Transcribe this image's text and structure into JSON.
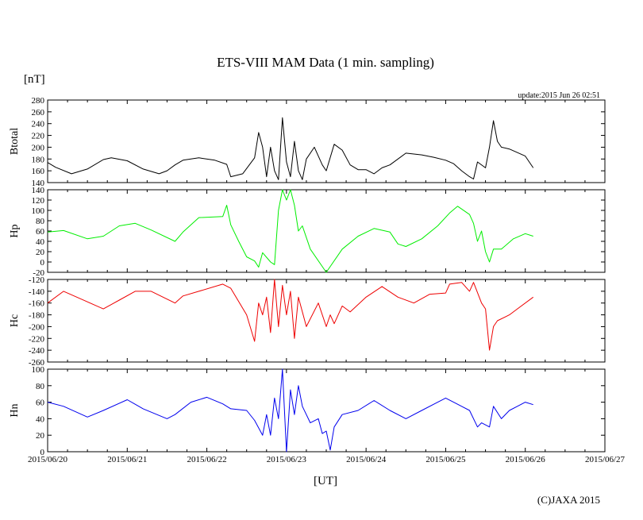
{
  "chart_data": {
    "type": "line",
    "title": "ETS-VIII MAM Data (1 min. sampling)",
    "unit_label": "[nT]",
    "xlabel": "[UT]",
    "update_text": "update:2015 Jun 26 02:51",
    "credit": "(C)JAXA 2015",
    "x_ticks": [
      "2015/06/20",
      "2015/06/21",
      "2015/06/22",
      "2015/06/23",
      "2015/06/24",
      "2015/06/25",
      "2015/06/26",
      "2015/06/27"
    ],
    "x_range_days": [
      0,
      7
    ],
    "panels": [
      {
        "name": "Btotal",
        "ylabel": "Btotal",
        "color": "#000000",
        "ylim": [
          140,
          280
        ],
        "y_ticks": [
          "280",
          "260",
          "240",
          "220",
          "200",
          "180",
          "160",
          "140"
        ],
        "x_days": [
          0,
          0.1,
          0.3,
          0.5,
          0.7,
          0.8,
          1.0,
          1.2,
          1.4,
          1.5,
          1.6,
          1.7,
          1.9,
          2.1,
          2.25,
          2.3,
          2.45,
          2.6,
          2.65,
          2.7,
          2.75,
          2.8,
          2.85,
          2.9,
          2.95,
          3.0,
          3.05,
          3.1,
          3.15,
          3.2,
          3.25,
          3.35,
          3.45,
          3.5,
          3.6,
          3.7,
          3.8,
          3.9,
          4.0,
          4.1,
          4.2,
          4.3,
          4.5,
          4.7,
          4.85,
          5.0,
          5.1,
          5.2,
          5.3,
          5.35,
          5.4,
          5.5,
          5.55,
          5.6,
          5.65,
          5.7,
          5.8,
          6.0,
          6.1
        ],
        "values": [
          174,
          166,
          155,
          163,
          179,
          182,
          177,
          163,
          155,
          160,
          170,
          178,
          182,
          178,
          171,
          150,
          155,
          182,
          225,
          200,
          150,
          200,
          160,
          145,
          250,
          175,
          150,
          210,
          160,
          145,
          180,
          200,
          170,
          160,
          205,
          195,
          170,
          162,
          162,
          155,
          165,
          170,
          190,
          187,
          183,
          178,
          172,
          160,
          150,
          146,
          175,
          165,
          200,
          245,
          210,
          200,
          197,
          185,
          165
        ]
      },
      {
        "name": "Hp",
        "ylabel": "Hp",
        "color": "#00ee00",
        "ylim": [
          -20,
          140
        ],
        "y_ticks": [
          "140",
          "120",
          "100",
          "80",
          "60",
          "40",
          "20",
          "0",
          "-20"
        ],
        "x_days": [
          0,
          0.2,
          0.5,
          0.7,
          0.9,
          1.1,
          1.3,
          1.6,
          1.7,
          1.9,
          2.2,
          2.25,
          2.3,
          2.4,
          2.5,
          2.6,
          2.65,
          2.7,
          2.8,
          2.85,
          2.9,
          2.95,
          3.0,
          3.05,
          3.1,
          3.15,
          3.2,
          3.3,
          3.5,
          3.7,
          3.9,
          4.1,
          4.3,
          4.4,
          4.5,
          4.7,
          4.9,
          5.05,
          5.15,
          5.3,
          5.35,
          5.4,
          5.45,
          5.5,
          5.55,
          5.6,
          5.7,
          5.85,
          6.0,
          6.1
        ],
        "values": [
          58,
          61,
          45,
          50,
          70,
          75,
          62,
          40,
          58,
          86,
          88,
          110,
          72,
          40,
          10,
          2,
          -10,
          18,
          0,
          -5,
          100,
          145,
          120,
          148,
          110,
          60,
          70,
          25,
          -20,
          25,
          50,
          65,
          58,
          35,
          30,
          45,
          70,
          95,
          108,
          92,
          75,
          40,
          60,
          20,
          0,
          25,
          25,
          45,
          55,
          50
        ]
      },
      {
        "name": "Hc",
        "ylabel": "Hc",
        "color": "#ee0000",
        "ylim": [
          -260,
          -120
        ],
        "y_ticks": [
          "-120",
          "-140",
          "-160",
          "-180",
          "-200",
          "-220",
          "-240",
          "-260"
        ],
        "x_days": [
          0,
          0.2,
          0.5,
          0.7,
          0.9,
          1.1,
          1.3,
          1.6,
          1.7,
          1.9,
          2.2,
          2.3,
          2.5,
          2.6,
          2.65,
          2.7,
          2.75,
          2.8,
          2.85,
          2.9,
          2.95,
          3.0,
          3.05,
          3.1,
          3.15,
          3.25,
          3.4,
          3.5,
          3.55,
          3.6,
          3.7,
          3.8,
          4.0,
          4.2,
          4.4,
          4.6,
          4.8,
          5.0,
          5.05,
          5.2,
          5.3,
          5.35,
          5.45,
          5.5,
          5.55,
          5.6,
          5.65,
          5.8,
          5.9,
          6.1
        ],
        "values": [
          -160,
          -140,
          -158,
          -170,
          -155,
          -140,
          -140,
          -160,
          -148,
          -140,
          -128,
          -135,
          -180,
          -225,
          -160,
          -180,
          -150,
          -210,
          -120,
          -200,
          -130,
          -180,
          -140,
          -220,
          -150,
          -200,
          -160,
          -200,
          -180,
          -195,
          -165,
          -175,
          -150,
          -132,
          -150,
          -160,
          -145,
          -143,
          -128,
          -125,
          -140,
          -125,
          -160,
          -170,
          -240,
          -200,
          -190,
          -180,
          -170,
          -150
        ]
      },
      {
        "name": "Hn",
        "ylabel": "Hn",
        "color": "#0000ee",
        "ylim": [
          0,
          100
        ],
        "y_ticks": [
          "100",
          "80",
          "60",
          "40",
          "20",
          "0"
        ],
        "x_days": [
          0,
          0.2,
          0.5,
          0.7,
          1.0,
          1.2,
          1.5,
          1.6,
          1.8,
          2.0,
          2.2,
          2.3,
          2.5,
          2.6,
          2.7,
          2.75,
          2.8,
          2.85,
          2.9,
          2.95,
          3.0,
          3.05,
          3.1,
          3.15,
          3.2,
          3.3,
          3.4,
          3.45,
          3.5,
          3.55,
          3.6,
          3.7,
          3.9,
          4.1,
          4.3,
          4.5,
          4.7,
          5.0,
          5.2,
          5.3,
          5.4,
          5.45,
          5.55,
          5.6,
          5.7,
          5.8,
          5.9,
          6.0,
          6.1
        ],
        "values": [
          60,
          55,
          42,
          50,
          63,
          52,
          40,
          45,
          60,
          66,
          58,
          52,
          50,
          38,
          20,
          45,
          20,
          65,
          40,
          100,
          0,
          75,
          45,
          80,
          55,
          35,
          40,
          22,
          25,
          2,
          30,
          45,
          50,
          62,
          50,
          40,
          50,
          65,
          55,
          50,
          30,
          35,
          30,
          55,
          40,
          50,
          55,
          60,
          57
        ]
      }
    ]
  }
}
